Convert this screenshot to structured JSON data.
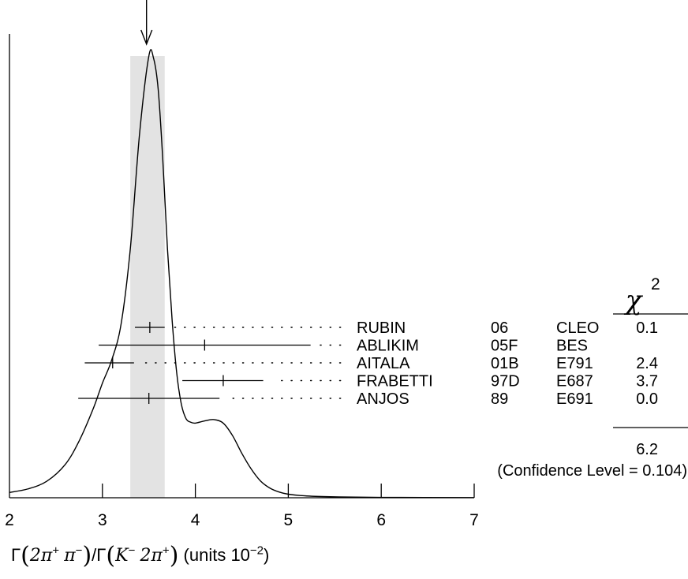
{
  "chart_data": {
    "type": "ideogram",
    "xlim": [
      2,
      7
    ],
    "x_ticks": [
      "2",
      "3",
      "4",
      "5",
      "6",
      "7"
    ],
    "xlabel": {
      "gamma1": "Γ",
      "num": "2π",
      "num_sup1": "+",
      "num2": "π",
      "num_sup2": "−",
      "slash": "/",
      "gamma2": "Γ",
      "den": "K",
      "den_sup1": "−",
      "den2": "2π",
      "den_sup2": "+",
      "units": "(units 10",
      "units_exp": "−2",
      "units_close": ")"
    },
    "average": 3.5,
    "band": [
      3.3,
      3.67
    ],
    "chi2_header": "χ",
    "chi2_header_exp": "2",
    "measurements": [
      {
        "author": "RUBIN",
        "year": "06",
        "experiment": "CLEO",
        "chi2": "0.1",
        "value": 3.51,
        "err_low": 0.16,
        "err_high": 0.16
      },
      {
        "author": "ABLIKIM",
        "year": "05F",
        "experiment": "BES",
        "chi2": "",
        "value": 4.1,
        "err_low": 1.14,
        "err_high": 1.14
      },
      {
        "author": "AITALA",
        "year": "01B",
        "experiment": "E791",
        "chi2": "2.4",
        "value": 3.11,
        "err_low": 0.3,
        "err_high": 0.23
      },
      {
        "author": "FRABETTI",
        "year": "97D",
        "experiment": "E687",
        "chi2": "3.7",
        "value": 4.3,
        "err_low": 0.44,
        "err_high": 0.43
      },
      {
        "author": "ANJOS",
        "year": "89",
        "experiment": "E691",
        "chi2": "0.0",
        "value": 3.5,
        "err_low": 0.76,
        "err_high": 0.76
      }
    ],
    "chi2_total": "6.2",
    "confidence_level": "(Confidence Level = 0.104)",
    "ideogram_curve": [
      [
        2.0,
        0.012
      ],
      [
        2.2,
        0.02
      ],
      [
        2.4,
        0.037
      ],
      [
        2.6,
        0.075
      ],
      [
        2.75,
        0.128
      ],
      [
        2.9,
        0.2
      ],
      [
        3.0,
        0.258
      ],
      [
        3.1,
        0.31
      ],
      [
        3.2,
        0.39
      ],
      [
        3.3,
        0.56
      ],
      [
        3.4,
        0.82
      ],
      [
        3.5,
        0.995
      ],
      [
        3.55,
        0.99
      ],
      [
        3.6,
        0.92
      ],
      [
        3.65,
        0.76
      ],
      [
        3.7,
        0.56
      ],
      [
        3.75,
        0.4
      ],
      [
        3.8,
        0.28
      ],
      [
        3.85,
        0.21
      ],
      [
        3.9,
        0.178
      ],
      [
        3.95,
        0.17
      ],
      [
        4.0,
        0.168
      ],
      [
        4.1,
        0.173
      ],
      [
        4.2,
        0.176
      ],
      [
        4.3,
        0.168
      ],
      [
        4.4,
        0.14
      ],
      [
        4.5,
        0.1
      ],
      [
        4.6,
        0.065
      ],
      [
        4.7,
        0.038
      ],
      [
        4.8,
        0.022
      ],
      [
        4.9,
        0.013
      ],
      [
        5.0,
        0.008
      ],
      [
        5.2,
        0.004
      ],
      [
        5.5,
        0.002
      ],
      [
        6.0,
        0.0008
      ],
      [
        7.0,
        0.0003
      ]
    ]
  }
}
